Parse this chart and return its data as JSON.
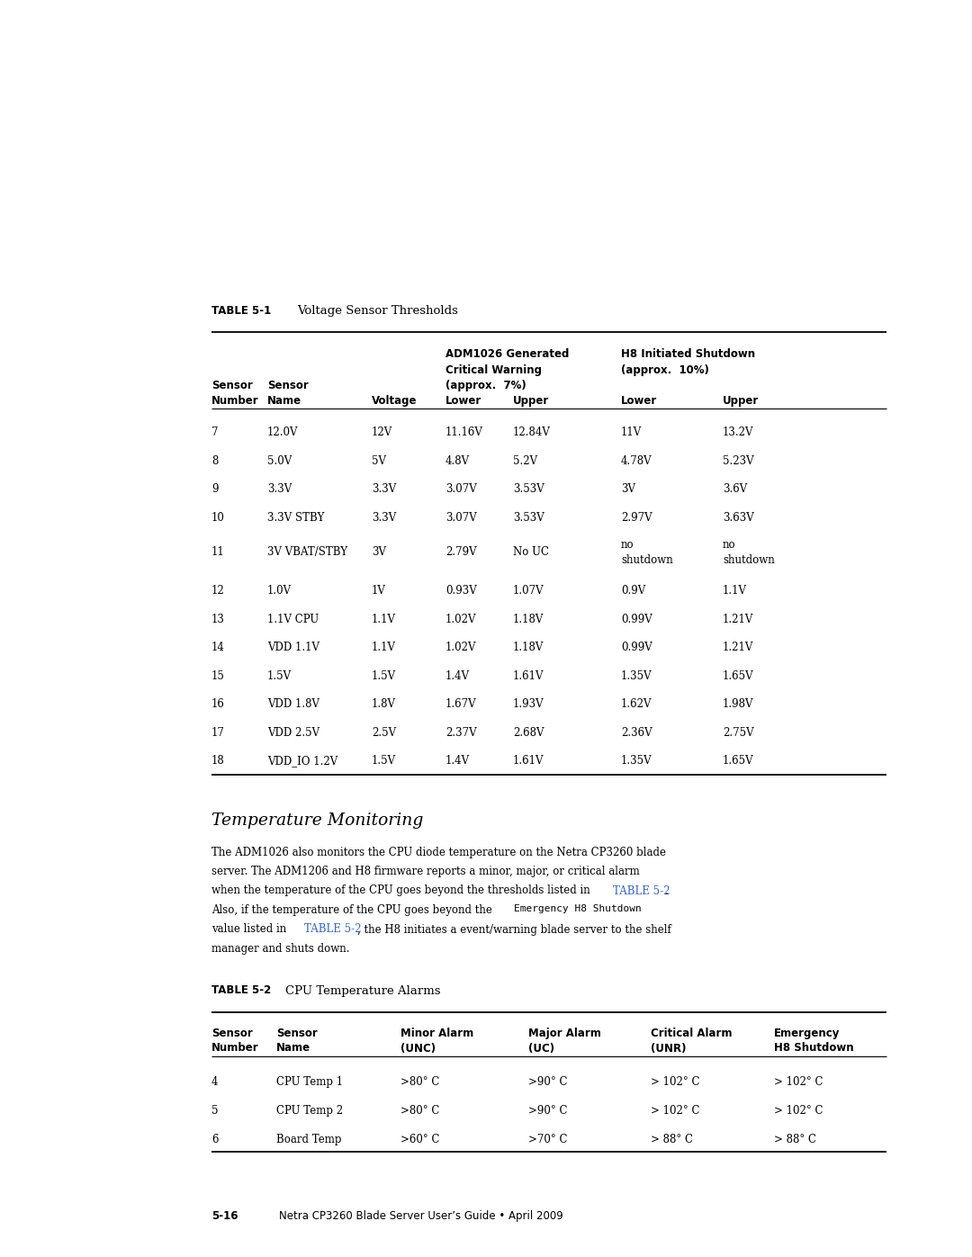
{
  "bg_color": "#ffffff",
  "page_width": 10.8,
  "page_height": 13.97,
  "table1_title": "TABLE 5-1",
  "table1_subtitle": "Voltage Sensor Thresholds",
  "table1_data": [
    [
      "7",
      "12.0V",
      "12V",
      "11.16V",
      "12.84V",
      "11V",
      "13.2V"
    ],
    [
      "8",
      "5.0V",
      "5V",
      "4.8V",
      "5.2V",
      "4.78V",
      "5.23V"
    ],
    [
      "9",
      "3.3V",
      "3.3V",
      "3.07V",
      "3.53V",
      "3V",
      "3.6V"
    ],
    [
      "10",
      "3.3V STBY",
      "3.3V",
      "3.07V",
      "3.53V",
      "2.97V",
      "3.63V"
    ],
    [
      "11",
      "3V VBAT/STBY",
      "3V",
      "2.79V",
      "No UC",
      "no\nshutdown",
      "no\nshutdown"
    ],
    [
      "12",
      "1.0V",
      "1V",
      "0.93V",
      "1.07V",
      "0.9V",
      "1.1V"
    ],
    [
      "13",
      "1.1V CPU",
      "1.1V",
      "1.02V",
      "1.18V",
      "0.99V",
      "1.21V"
    ],
    [
      "14",
      "VDD 1.1V",
      "1.1V",
      "1.02V",
      "1.18V",
      "0.99V",
      "1.21V"
    ],
    [
      "15",
      "1.5V",
      "1.5V",
      "1.4V",
      "1.61V",
      "1.35V",
      "1.65V"
    ],
    [
      "16",
      "VDD 1.8V",
      "1.8V",
      "1.67V",
      "1.93V",
      "1.62V",
      "1.98V"
    ],
    [
      "17",
      "VDD 2.5V",
      "2.5V",
      "2.37V",
      "2.68V",
      "2.36V",
      "2.75V"
    ],
    [
      "18",
      "VDD_IO 1.2V",
      "1.5V",
      "1.4V",
      "1.61V",
      "1.35V",
      "1.65V"
    ]
  ],
  "section_title": "Temperature Monitoring",
  "body_lines": [
    {
      "type": "plain",
      "text": "The ADM1026 also monitors the CPU diode temperature on the Netra CP3260 blade"
    },
    {
      "type": "plain",
      "text": "server. The ADM1206 and H8 firmware reports a minor, major, or critical alarm"
    },
    {
      "type": "mixed",
      "parts": [
        {
          "style": "plain",
          "text": "when the temperature of the CPU goes beyond the thresholds listed in "
        },
        {
          "style": "link",
          "text": "TABLE 5-2"
        },
        {
          "style": "plain",
          "text": "."
        }
      ]
    },
    {
      "type": "mixed",
      "parts": [
        {
          "style": "plain",
          "text": "Also, if the temperature of the CPU goes beyond the "
        },
        {
          "style": "code",
          "text": "Emergency H8 Shutdown"
        }
      ]
    },
    {
      "type": "mixed",
      "parts": [
        {
          "style": "plain",
          "text": "value listed in "
        },
        {
          "style": "link",
          "text": "TABLE 5-2"
        },
        {
          "style": "plain",
          "text": ", the H8 initiates a event/warning blade server to the shelf"
        }
      ]
    },
    {
      "type": "plain",
      "text": "manager and shuts down."
    }
  ],
  "table2_title": "TABLE 5-2",
  "table2_subtitle": "CPU Temperature Alarms",
  "table2_data": [
    [
      "4",
      "CPU Temp 1",
      ">80° C",
      ">90° C",
      "> 102° C",
      "> 102° C"
    ],
    [
      "5",
      "CPU Temp 2",
      ">80° C",
      ">90° C",
      "> 102° C",
      "> 102° C"
    ],
    [
      "6",
      "Board Temp",
      ">60° C",
      ">70° C",
      "> 88° C",
      "> 88° C"
    ]
  ],
  "footer_left": "5-16",
  "footer_right": "Netra CP3260 Blade Server User’s Guide • April 2009",
  "link_color": "#3366cc",
  "text_color": "#000000"
}
